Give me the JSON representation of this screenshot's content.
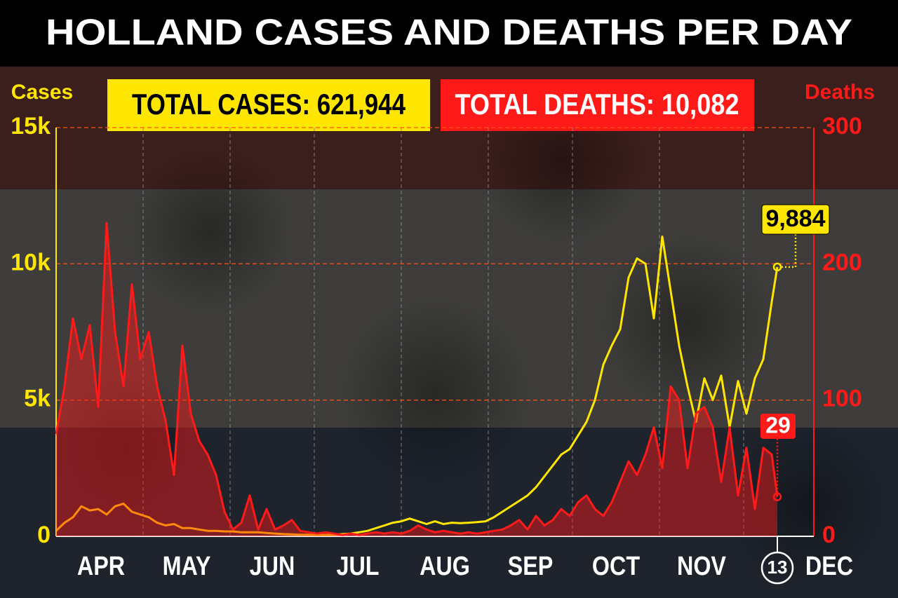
{
  "chart_data": {
    "type": "line",
    "title": "HOLLAND CASES AND DEATHS PER DAY",
    "y_label": "Cases",
    "y2_label": "Deaths",
    "total_cases": "TOTAL CASES: 621,944",
    "total_deaths": "TOTAL DEATHS: 10,082",
    "x": [
      -1,
      2,
      5,
      8,
      11,
      14,
      17,
      20,
      23,
      26,
      29,
      32,
      35,
      38,
      41,
      44,
      47,
      50,
      53,
      56,
      59,
      62,
      65,
      68,
      71,
      74,
      77,
      80,
      83,
      86,
      89,
      92,
      95,
      98,
      101,
      104,
      107,
      110,
      113,
      116,
      119,
      122,
      125,
      128,
      131,
      134,
      137,
      140,
      143,
      146,
      149,
      152,
      155,
      158,
      161,
      164,
      167,
      170,
      173,
      176,
      179,
      182,
      185,
      188,
      191,
      194,
      197,
      200,
      203,
      206,
      209,
      212,
      215,
      218,
      221,
      224,
      227,
      230,
      233,
      236,
      239,
      242,
      245,
      248,
      251,
      254,
      256
    ],
    "xlim": [
      -1,
      269
    ],
    "xticks": [
      {
        "value": 0,
        "label": "APR"
      },
      {
        "value": 30,
        "label": "MAY"
      },
      {
        "value": 61,
        "label": "JUN"
      },
      {
        "value": 91,
        "label": "JUL"
      },
      {
        "value": 122,
        "label": "AUG"
      },
      {
        "value": 153,
        "label": "SEP"
      },
      {
        "value": 183,
        "label": "OCT"
      },
      {
        "value": 214,
        "label": "NOV"
      },
      {
        "value": 244,
        "label": "DEC"
      }
    ],
    "x_marker": {
      "value": 256,
      "label": "13"
    },
    "ylim": [
      0,
      15000
    ],
    "yticks": [
      0,
      {
        "value": 5000,
        "label": "5k"
      },
      {
        "value": 10000,
        "label": "10k"
      },
      {
        "value": 15000,
        "label": "15k"
      }
    ],
    "y2lim": [
      0,
      300
    ],
    "y2ticks": [
      0,
      100,
      200,
      300
    ],
    "grid": true,
    "series": [
      {
        "name": "Cases",
        "color": "#ffe600",
        "axis": "y",
        "values": [
          200,
          500,
          700,
          1100,
          950,
          1000,
          800,
          1100,
          1200,
          900,
          800,
          700,
          500,
          400,
          450,
          300,
          300,
          250,
          200,
          200,
          180,
          180,
          150,
          150,
          150,
          120,
          100,
          80,
          70,
          60,
          60,
          50,
          50,
          60,
          80,
          100,
          150,
          200,
          300,
          400,
          500,
          550,
          650,
          550,
          450,
          550,
          450,
          500,
          480,
          500,
          520,
          550,
          700,
          900,
          1100,
          1300,
          1500,
          1800,
          2200,
          2600,
          3000,
          3200,
          3700,
          4200,
          5000,
          6300,
          7000,
          7600,
          9500,
          10200,
          10000,
          8000,
          11000,
          9000,
          7000,
          5500,
          4200,
          5800,
          5000,
          5900,
          4000,
          5700,
          4500,
          5800,
          6500,
          8600,
          9884
        ],
        "value_labels": [
          null,
          null,
          null,
          null,
          null,
          null,
          null,
          null,
          null,
          null,
          null,
          null,
          null,
          null,
          null,
          null,
          null,
          null,
          null,
          null,
          null,
          null,
          null,
          null,
          null,
          null,
          null,
          null,
          null,
          null,
          null,
          null,
          null,
          null,
          null,
          null,
          null,
          null,
          null,
          null,
          null,
          null,
          null,
          null,
          null,
          null,
          null,
          null,
          null,
          null,
          null,
          null,
          null,
          null,
          null,
          null,
          null,
          null,
          null,
          null,
          null,
          null,
          null,
          null,
          null,
          null,
          null,
          null,
          null,
          null,
          null,
          null,
          null,
          null,
          null,
          null,
          null,
          null,
          null,
          null,
          null,
          null,
          null,
          null,
          null,
          null,
          "9,884"
        ]
      },
      {
        "name": "Deaths",
        "color": "#ff1a1a",
        "axis": "y2",
        "values": [
          75,
          110,
          160,
          130,
          155,
          95,
          230,
          150,
          110,
          185,
          130,
          150,
          110,
          85,
          45,
          140,
          90,
          70,
          60,
          45,
          18,
          5,
          10,
          30,
          5,
          20,
          5,
          8,
          12,
          4,
          3,
          2,
          3,
          2,
          1,
          2,
          1,
          2,
          3,
          2,
          3,
          2,
          4,
          8,
          5,
          3,
          4,
          3,
          2,
          3,
          2,
          3,
          4,
          5,
          8,
          12,
          5,
          15,
          8,
          12,
          20,
          15,
          25,
          30,
          20,
          15,
          25,
          40,
          55,
          45,
          60,
          80,
          50,
          110,
          100,
          50,
          90,
          95,
          80,
          40,
          80,
          30,
          65,
          20,
          65,
          60,
          29
        ],
        "value_labels": [
          null,
          null,
          null,
          null,
          null,
          null,
          null,
          null,
          null,
          null,
          null,
          null,
          null,
          null,
          null,
          null,
          null,
          null,
          null,
          null,
          null,
          null,
          null,
          null,
          null,
          null,
          null,
          null,
          null,
          null,
          null,
          null,
          null,
          null,
          null,
          null,
          null,
          null,
          null,
          null,
          null,
          null,
          null,
          null,
          null,
          null,
          null,
          null,
          null,
          null,
          null,
          null,
          null,
          null,
          null,
          null,
          null,
          null,
          null,
          null,
          null,
          null,
          null,
          null,
          null,
          null,
          null,
          null,
          null,
          null,
          null,
          null,
          null,
          null,
          null,
          null,
          null,
          null,
          null,
          null,
          null,
          null,
          null,
          null,
          null,
          null,
          "29"
        ]
      }
    ]
  }
}
